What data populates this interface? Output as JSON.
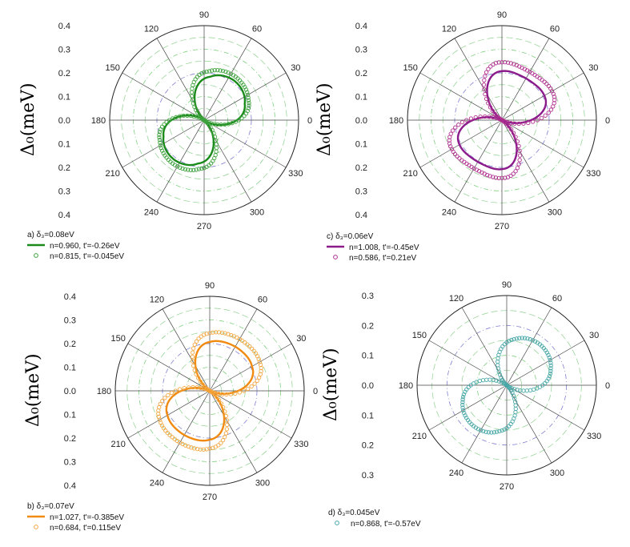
{
  "chart_data": [
    {
      "panel": "a",
      "type": "polar",
      "caption": "a) δ₃=0.08eV",
      "ylabel": "Δ₀(meV)",
      "r_ticks": [
        "0.4",
        "0.3",
        "0.2",
        "0.1",
        "0.0",
        "0.1",
        "0.2",
        "0.3",
        "0.4"
      ],
      "rmax": 0.4,
      "angle_ticks": [
        "0",
        "30",
        "60",
        "90",
        "120",
        "150",
        "180",
        "210",
        "240",
        "270",
        "300",
        "330"
      ],
      "series": [
        {
          "name": "n=0.960, t'=-0.26eV",
          "style": "line",
          "color": "#1a8a1a",
          "params": {
            "a": 0.2,
            "b": 0.05,
            "phase": 52,
            "fat": 0.05
          }
        },
        {
          "name": "n=0.815, t'=-0.045eV",
          "style": "markers",
          "color": "#3fa33f",
          "params": {
            "a": 0.215,
            "b": 0.07,
            "phase": 55,
            "fat": 0.06
          }
        }
      ]
    },
    {
      "panel": "c",
      "type": "polar",
      "caption": "c) δ₃=0.06eV",
      "ylabel": "Δ₀(meV)",
      "r_ticks": [
        "0.4",
        "0.3",
        "0.2",
        "0.1",
        "0.0",
        "0.1",
        "0.2",
        "0.3",
        "0.4"
      ],
      "rmax": 0.4,
      "angle_ticks": [
        "0",
        "30",
        "60",
        "90",
        "120",
        "150",
        "180",
        "210",
        "240",
        "270",
        "300",
        "330"
      ],
      "series": [
        {
          "name": "n=1.008, t'=-0.45eV",
          "style": "line",
          "color": "#8b1a8b",
          "params": {
            "a": 0.2,
            "b": 0.1,
            "phase": 60,
            "fat": 0.02
          }
        },
        {
          "name": "n=0.586, t'=0.21eV",
          "style": "markers",
          "color": "#b0308f",
          "params": {
            "a": 0.23,
            "b": 0.13,
            "phase": 60,
            "fat": 0.03
          }
        }
      ]
    },
    {
      "panel": "b",
      "type": "polar",
      "caption": "b) δ₃=0.07eV",
      "ylabel": "Δ₀(meV)",
      "r_ticks": [
        "0.4",
        "0.3",
        "0.2",
        "0.1",
        "0.0",
        "0.1",
        "0.2",
        "0.3",
        "0.4"
      ],
      "rmax": 0.4,
      "angle_ticks": [
        "0",
        "30",
        "60",
        "90",
        "120",
        "150",
        "180",
        "210",
        "240",
        "270",
        "300",
        "330"
      ],
      "series": [
        {
          "name": "n=1.027, t'=-0.385eV",
          "style": "line",
          "color": "#f08a10",
          "params": {
            "a": 0.21,
            "b": 0.08,
            "phase": 60,
            "fat": 0.03
          }
        },
        {
          "name": "n=0.684, t'=0.115eV",
          "style": "markers",
          "color": "#f4a640",
          "params": {
            "a": 0.245,
            "b": 0.1,
            "phase": 60,
            "fat": 0.04
          }
        }
      ]
    },
    {
      "panel": "d",
      "type": "polar",
      "caption": "d) δ₃=0.045eV",
      "ylabel": "Δ₀(meV)",
      "r_ticks": [
        "0.3",
        "0.2",
        "0.1",
        "0.0",
        "0.1",
        "0.2",
        "0.3"
      ],
      "rmax": 0.3,
      "angle_ticks": [
        "0",
        "30",
        "60",
        "90",
        "120",
        "150",
        "180",
        "210",
        "240",
        "270",
        "300",
        "330"
      ],
      "series": [
        {
          "name": "n=0.868, t'=-0.57eV",
          "style": "markers",
          "color": "#4aa8a8",
          "params": {
            "a": 0.17,
            "b": 0.04,
            "phase": 50,
            "fat": 0.03
          }
        }
      ]
    }
  ]
}
